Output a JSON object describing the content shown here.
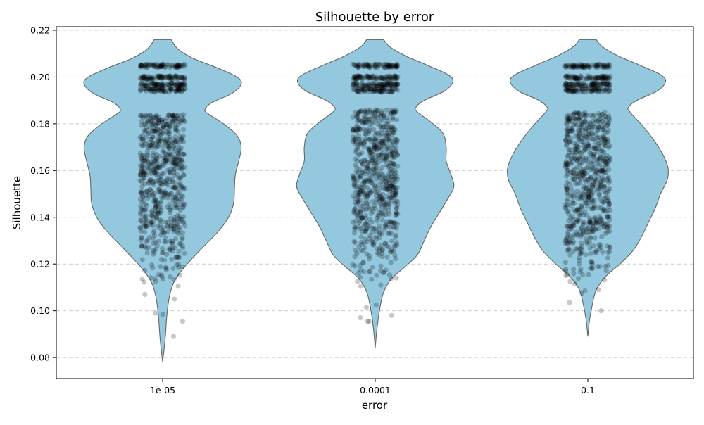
{
  "chart_data": {
    "type": "violin",
    "title": "Silhouette by error",
    "xlabel": "error",
    "ylabel": "Silhouette",
    "categories": [
      "1e-05",
      "0.0001",
      "0.1"
    ],
    "ylim": [
      0.071,
      0.2215
    ],
    "yticks": [
      0.08,
      0.1,
      0.12,
      0.14,
      0.16,
      0.18,
      0.2,
      0.22
    ],
    "ytick_labels": [
      "0.08",
      "0.10",
      "0.12",
      "0.14",
      "0.16",
      "0.18",
      "0.20",
      "0.22"
    ],
    "grid": "y, dashed",
    "violin_color": "#93c8df",
    "point_color": "#000000",
    "violins": [
      {
        "category": "1e-05",
        "min": 0.078,
        "max": 0.216,
        "profile": [
          [
            0.078,
            0.0
          ],
          [
            0.088,
            0.03
          ],
          [
            0.098,
            0.05
          ],
          [
            0.106,
            0.08
          ],
          [
            0.112,
            0.13
          ],
          [
            0.117,
            0.22
          ],
          [
            0.122,
            0.34
          ],
          [
            0.128,
            0.5
          ],
          [
            0.134,
            0.66
          ],
          [
            0.14,
            0.78
          ],
          [
            0.146,
            0.84
          ],
          [
            0.152,
            0.85
          ],
          [
            0.158,
            0.86
          ],
          [
            0.164,
            0.9
          ],
          [
            0.17,
            0.93
          ],
          [
            0.175,
            0.88
          ],
          [
            0.18,
            0.72
          ],
          [
            0.184,
            0.55
          ],
          [
            0.186,
            0.5
          ],
          [
            0.189,
            0.58
          ],
          [
            0.193,
            0.82
          ],
          [
            0.197,
            0.93
          ],
          [
            0.2,
            0.88
          ],
          [
            0.204,
            0.64
          ],
          [
            0.208,
            0.36
          ],
          [
            0.212,
            0.18
          ],
          [
            0.216,
            0.1
          ]
        ]
      },
      {
        "category": "0.0001",
        "min": 0.084,
        "max": 0.216,
        "profile": [
          [
            0.084,
            0.0
          ],
          [
            0.092,
            0.02
          ],
          [
            0.1,
            0.05
          ],
          [
            0.108,
            0.1
          ],
          [
            0.114,
            0.2
          ],
          [
            0.119,
            0.36
          ],
          [
            0.124,
            0.5
          ],
          [
            0.13,
            0.58
          ],
          [
            0.136,
            0.66
          ],
          [
            0.142,
            0.76
          ],
          [
            0.148,
            0.86
          ],
          [
            0.153,
            0.93
          ],
          [
            0.158,
            0.9
          ],
          [
            0.164,
            0.84
          ],
          [
            0.17,
            0.84
          ],
          [
            0.176,
            0.8
          ],
          [
            0.181,
            0.65
          ],
          [
            0.185,
            0.5
          ],
          [
            0.187,
            0.48
          ],
          [
            0.19,
            0.58
          ],
          [
            0.194,
            0.82
          ],
          [
            0.198,
            0.92
          ],
          [
            0.201,
            0.86
          ],
          [
            0.205,
            0.62
          ],
          [
            0.209,
            0.36
          ],
          [
            0.213,
            0.17
          ],
          [
            0.216,
            0.1
          ]
        ]
      },
      {
        "category": "0.1",
        "min": 0.089,
        "max": 0.216,
        "profile": [
          [
            0.089,
            0.0
          ],
          [
            0.096,
            0.02
          ],
          [
            0.102,
            0.05
          ],
          [
            0.109,
            0.1
          ],
          [
            0.115,
            0.22
          ],
          [
            0.12,
            0.38
          ],
          [
            0.126,
            0.54
          ],
          [
            0.132,
            0.64
          ],
          [
            0.138,
            0.72
          ],
          [
            0.144,
            0.8
          ],
          [
            0.15,
            0.86
          ],
          [
            0.156,
            0.94
          ],
          [
            0.161,
            0.95
          ],
          [
            0.166,
            0.9
          ],
          [
            0.171,
            0.82
          ],
          [
            0.176,
            0.72
          ],
          [
            0.181,
            0.6
          ],
          [
            0.185,
            0.5
          ],
          [
            0.187,
            0.48
          ],
          [
            0.19,
            0.58
          ],
          [
            0.194,
            0.82
          ],
          [
            0.198,
            0.92
          ],
          [
            0.201,
            0.86
          ],
          [
            0.205,
            0.62
          ],
          [
            0.209,
            0.36
          ],
          [
            0.213,
            0.17
          ],
          [
            0.216,
            0.1
          ]
        ]
      }
    ],
    "strip_points": [
      {
        "category": "1e-05",
        "bands": [
          [
            0.1935,
            0.1955,
            70
          ],
          [
            0.196,
            0.1975,
            70
          ],
          [
            0.199,
            0.2005,
            70
          ],
          [
            0.204,
            0.2055,
            70
          ],
          [
            0.178,
            0.184,
            90
          ],
          [
            0.164,
            0.178,
            160
          ],
          [
            0.148,
            0.164,
            180
          ],
          [
            0.134,
            0.148,
            130
          ],
          [
            0.124,
            0.134,
            60
          ],
          [
            0.112,
            0.124,
            30
          ]
        ],
        "outliers": [
          0.1135,
          0.1135,
          0.1125,
          0.1105,
          0.107,
          0.105,
          0.099,
          0.0985,
          0.0955,
          0.089
        ]
      },
      {
        "category": "0.0001",
        "bands": [
          [
            0.1935,
            0.1955,
            70
          ],
          [
            0.196,
            0.1975,
            70
          ],
          [
            0.199,
            0.2005,
            70
          ],
          [
            0.204,
            0.2055,
            70
          ],
          [
            0.178,
            0.186,
            90
          ],
          [
            0.164,
            0.178,
            170
          ],
          [
            0.148,
            0.164,
            190
          ],
          [
            0.134,
            0.148,
            130
          ],
          [
            0.124,
            0.134,
            60
          ],
          [
            0.113,
            0.124,
            30
          ]
        ],
        "outliers": [
          0.1125,
          0.111,
          0.1105,
          0.1025,
          0.1015,
          0.098,
          0.097,
          0.0955,
          0.0955
        ]
      },
      {
        "category": "0.1",
        "bands": [
          [
            0.1935,
            0.1955,
            70
          ],
          [
            0.196,
            0.1975,
            70
          ],
          [
            0.199,
            0.2005,
            70
          ],
          [
            0.204,
            0.2055,
            70
          ],
          [
            0.178,
            0.185,
            90
          ],
          [
            0.164,
            0.178,
            160
          ],
          [
            0.148,
            0.164,
            180
          ],
          [
            0.134,
            0.148,
            140
          ],
          [
            0.124,
            0.134,
            70
          ],
          [
            0.113,
            0.124,
            30
          ]
        ],
        "outliers": [
          0.1125,
          0.1115,
          0.109,
          0.1085,
          0.1075,
          0.1,
          0.1035
        ]
      }
    ]
  }
}
